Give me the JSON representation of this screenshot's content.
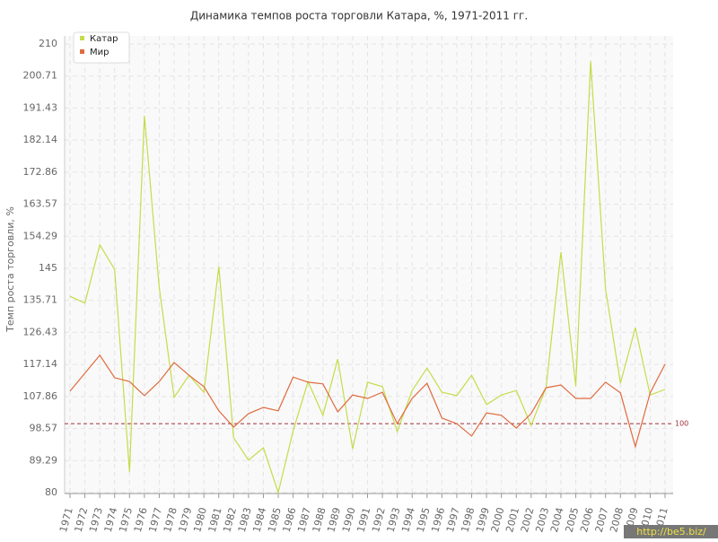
{
  "chart_data": {
    "type": "line",
    "title": "Динамика темпов роста торговли Катара, %, 1971-2011 гг.",
    "y_label": "Темп роста торговли, %",
    "categories": [
      "1971",
      "1972",
      "1973",
      "1974",
      "1975",
      "1976",
      "1977",
      "1978",
      "1979",
      "1980",
      "1981",
      "1982",
      "1983",
      "1984",
      "1985",
      "1986",
      "1987",
      "1988",
      "1989",
      "1990",
      "1991",
      "1992",
      "1993",
      "1994",
      "1995",
      "1996",
      "1997",
      "1998",
      "1999",
      "2000",
      "2001",
      "2002",
      "2003",
      "2004",
      "2005",
      "2006",
      "2007",
      "2008",
      "2009",
      "2010",
      "2011"
    ],
    "series": [
      {
        "name": "Катар",
        "color": "#c5dc4a",
        "values": [
          136.9,
          134.9,
          151.8,
          144.7,
          86,
          189.2,
          139.5,
          107.6,
          114,
          109.1,
          145.5,
          95.9,
          89.4,
          93,
          80,
          97.9,
          112.2,
          102.4,
          118.7,
          92.7,
          112,
          110.7,
          97.7,
          109.6,
          116.1,
          109.1,
          108.1,
          114,
          105.5,
          108.3,
          109.6,
          99.5,
          110.4,
          149.7,
          110.9,
          205,
          139,
          111.7,
          127.8,
          108.3,
          109.9
        ]
      },
      {
        "name": "Мир",
        "color": "#e06a3e",
        "values": [
          109.4,
          114.6,
          119.8,
          113.3,
          112.2,
          108.1,
          112.2,
          117.7,
          114,
          110.7,
          103.7,
          99,
          102.9,
          104.7,
          103.7,
          113.5,
          112,
          111.5,
          103.4,
          108.3,
          107.3,
          109.1,
          100,
          107.3,
          111.7,
          101.6,
          100,
          96.4,
          103.1,
          102.4,
          98.7,
          102.9,
          110.4,
          111.2,
          107.3,
          107.3,
          112,
          108.9,
          93.3,
          108.9,
          117.2
        ]
      }
    ],
    "reference_line": {
      "value": 100,
      "color": "#a0303a"
    },
    "ylim": [
      80,
      210
    ],
    "yticks": [
      80,
      89.29,
      98.57,
      107.86,
      117.14,
      126.43,
      135.71,
      145,
      154.29,
      163.57,
      172.86,
      182.14,
      191.43,
      200.71,
      210
    ],
    "grid": true,
    "legend": "top-left",
    "watermark": "http://be5.biz/"
  }
}
